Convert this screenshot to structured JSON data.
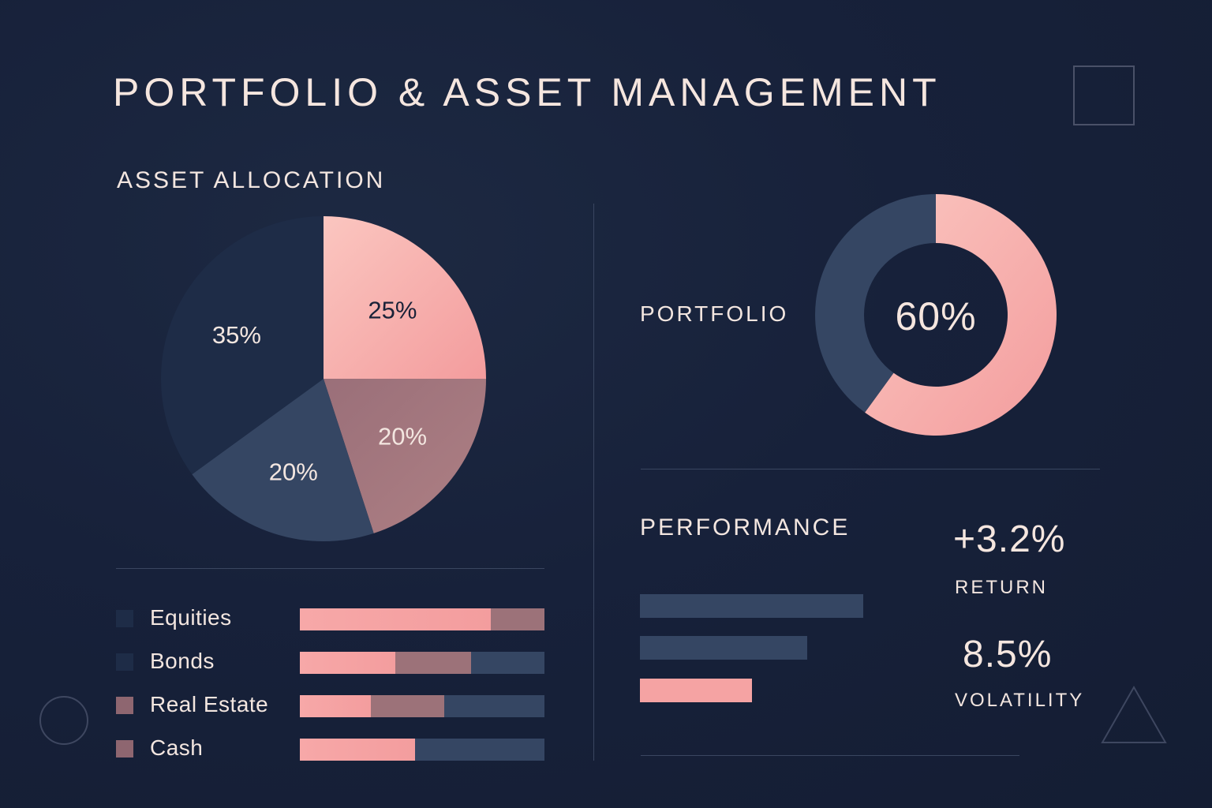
{
  "header": {
    "title": "PORTFOLIO & ASSET MANAGEMENT"
  },
  "colors": {
    "background": "#17213a",
    "pink": "#f5a3a3",
    "mauve": "#a3777e",
    "slate": "#354663",
    "navy": "#1e2c47",
    "text": "#f3e6e0"
  },
  "allocation": {
    "heading": "ASSET ALLOCATION",
    "legend": [
      {
        "label": "Equities",
        "color": "#1e2c47"
      },
      {
        "label": "Bonds",
        "color": "#1e2c47"
      },
      {
        "label": "Real Estate",
        "color": "#8e6670"
      },
      {
        "label": "Cash",
        "color": "#8e6670"
      }
    ]
  },
  "portfolio": {
    "heading": "PORTFOLIO",
    "center_label": "60%"
  },
  "performance": {
    "heading": "PERFORMANCE",
    "return_value": "+3.2%",
    "return_label": "RETURN",
    "volatility_value": "8.5%",
    "volatility_label": "VOLATILITY"
  },
  "chart_data": [
    {
      "type": "pie",
      "slices": [
        {
          "label": "25%",
          "value": 25,
          "color": "#f5a3a3"
        },
        {
          "label": "20%",
          "value": 20,
          "color": "#a3777e"
        },
        {
          "label": "20%",
          "value": 20,
          "color": "#354663"
        },
        {
          "label": "35%",
          "value": 35,
          "color": "#1e2c47"
        }
      ]
    },
    {
      "type": "pie",
      "variant": "donut",
      "slices": [
        {
          "label": "60%",
          "value": 60,
          "color": "#f5a3a3"
        },
        {
          "value": 40,
          "color": "#354663"
        }
      ]
    },
    {
      "type": "bar",
      "orientation": "horizontal",
      "stacked": true,
      "categories": [
        "Equities",
        "Bonds",
        "Real Estate",
        "Cash"
      ],
      "series": [
        {
          "color": "#f5a3a3",
          "values": [
            78,
            39,
            29,
            47
          ]
        },
        {
          "color": "#a3777e",
          "values": [
            22,
            31,
            30,
            0
          ]
        },
        {
          "color": "#354663",
          "values": [
            0,
            30,
            41,
            53
          ]
        }
      ]
    },
    {
      "type": "bar",
      "orientation": "horizontal",
      "values": [
        100,
        75,
        50
      ],
      "colors": [
        "#354663",
        "#354663",
        "#f5a3a3"
      ]
    }
  ]
}
